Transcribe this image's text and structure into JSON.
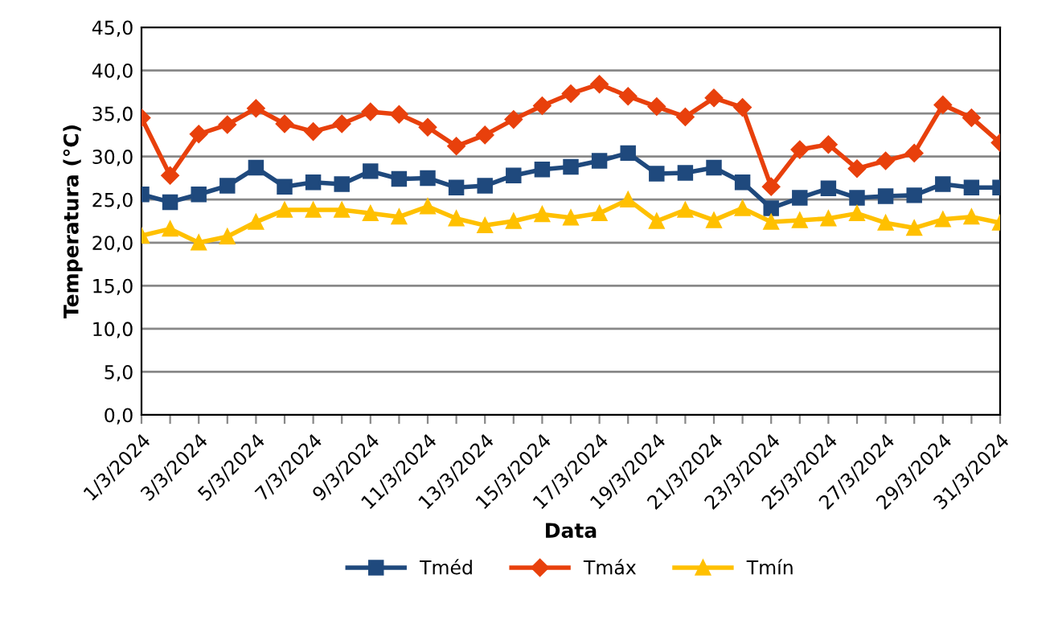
{
  "chart_data": {
    "type": "line",
    "xlabel": "Data",
    "ylabel": "Temperatura (°C)",
    "categories": [
      "1/3/2024",
      null,
      "3/3/2024",
      null,
      "5/3/2024",
      null,
      "7/3/2024",
      null,
      "9/3/2024",
      null,
      "11/3/2024",
      null,
      "13/3/2024",
      null,
      "15/3/2024",
      null,
      "17/3/2024",
      null,
      "19/3/2024",
      null,
      "21/3/2024",
      null,
      "23/3/2024",
      null,
      "25/3/2024",
      null,
      "27/3/2024",
      null,
      "29/3/2024",
      null,
      "31/3/2024"
    ],
    "series": [
      {
        "name": "Tméd",
        "color": "#1f497d",
        "marker": "square",
        "values": [
          25.6,
          24.7,
          25.6,
          26.6,
          28.7,
          26.5,
          27.0,
          26.8,
          28.3,
          27.4,
          27.5,
          26.4,
          26.6,
          27.8,
          28.5,
          28.8,
          29.5,
          30.4,
          28.0,
          28.1,
          28.7,
          27.0,
          24.0,
          25.2,
          26.3,
          25.2,
          25.4,
          25.5,
          26.8,
          26.4,
          26.4
        ]
      },
      {
        "name": "Tmáx",
        "color": "#e8400c",
        "marker": "diamond",
        "values": [
          34.5,
          27.8,
          32.6,
          33.7,
          35.6,
          33.8,
          32.9,
          33.8,
          35.2,
          34.9,
          33.4,
          31.2,
          32.5,
          34.3,
          35.9,
          37.3,
          38.4,
          37.0,
          35.8,
          34.6,
          36.8,
          35.7,
          26.5,
          30.8,
          31.4,
          28.6,
          29.5,
          30.4,
          36.0,
          34.5,
          31.6
        ]
      },
      {
        "name": "Tmín",
        "color": "#ffc000",
        "marker": "triangle",
        "values": [
          20.8,
          21.6,
          20.0,
          20.7,
          22.4,
          23.8,
          23.8,
          23.8,
          23.4,
          23.0,
          24.2,
          22.8,
          22.0,
          22.5,
          23.3,
          22.9,
          23.4,
          25.0,
          22.5,
          23.8,
          22.6,
          24.0,
          22.4,
          22.6,
          22.8,
          23.4,
          22.3,
          21.7,
          22.7,
          23.0,
          22.3
        ]
      }
    ],
    "ylim": [
      0,
      45
    ],
    "yticks": [
      {
        "value": 0,
        "label": "0,0"
      },
      {
        "value": 5,
        "label": "5,0"
      },
      {
        "value": 10,
        "label": "10,0"
      },
      {
        "value": 15,
        "label": "15,0"
      },
      {
        "value": 20,
        "label": "20,0"
      },
      {
        "value": 25,
        "label": "25,0"
      },
      {
        "value": 30,
        "label": "30,0"
      },
      {
        "value": 35,
        "label": "35,0"
      },
      {
        "value": 40,
        "label": "40,0"
      },
      {
        "value": 45,
        "label": "45,0"
      }
    ],
    "grid": "y",
    "legend": "bottom",
    "line_style": "solid"
  }
}
